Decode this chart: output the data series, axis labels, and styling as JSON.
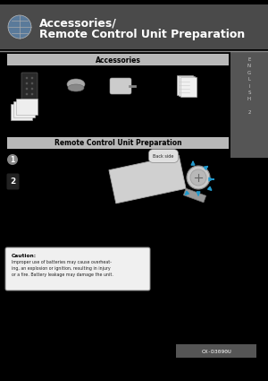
{
  "bg_color": "#000000",
  "header_bg": "#4a4a4a",
  "header_text_color": "#ffffff",
  "section_bar_color": "#b8b8b8",
  "section_text_color": "#000000",
  "accessories_label": "Accessories",
  "remote_label": "Remote Control Unit Preparation",
  "sidebar_bg": "#555555",
  "sidebar_text": "E\nN\nG\nL\nI\nS\nH\n\n2",
  "sidebar_text_color": "#cccccc",
  "caution_bg": "#f0f0f0",
  "caution_border": "#888888",
  "caution_title": "Caution:",
  "caution_text": "Improper use of batteries may cause overheat-\ning, an explosion or ignition, resulting in injury\nor a fire. Battery leakage may damage the unit.",
  "model_label": "CX-D3090U",
  "model_bg": "#555555",
  "model_text_color": "#ffffff",
  "back_side_label": "Back side",
  "arrow_color": "#2299cc",
  "line_color": "#888888"
}
